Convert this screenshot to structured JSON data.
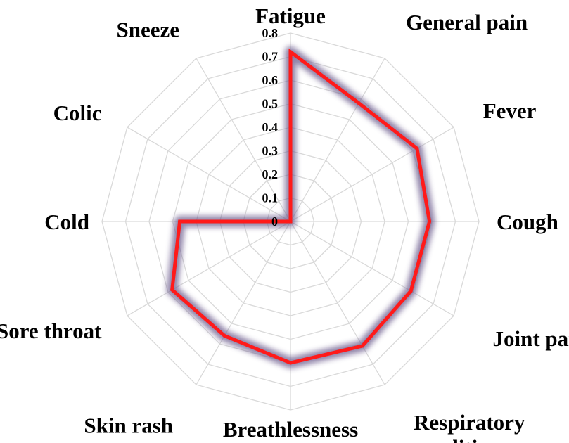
{
  "chart_data": {
    "type": "radar",
    "categories": [
      "Fatigue",
      "General pain",
      "Fever",
      "Cough",
      "Joint pain",
      "Respiratory condition",
      "Breathlessness",
      "Skin rash",
      "Sore throat",
      "Cold",
      "Colic",
      "Sneeze"
    ],
    "category_lines": [
      [
        "Fatigue"
      ],
      [
        "General pain"
      ],
      [
        "Fever"
      ],
      [
        "Cough"
      ],
      [
        "Joint pain"
      ],
      [
        "Respiratory",
        "condition"
      ],
      [
        "Breathlessness"
      ],
      [
        "Skin rash"
      ],
      [
        "Sore throat"
      ],
      [
        "Cold"
      ],
      [
        "Colic"
      ],
      [
        "Sneeze"
      ]
    ],
    "values": [
      0.72,
      0.58,
      0.62,
      0.59,
      0.59,
      0.61,
      0.6,
      0.56,
      0.58,
      0.47,
      0.0,
      0.0
    ],
    "range": [
      0,
      0.8
    ],
    "ticks": [
      "0",
      "0.1",
      "0.2",
      "0.3",
      "0.4",
      "0.5",
      "0.6",
      "0.7",
      "0.8"
    ],
    "grid": true,
    "legend": "none",
    "line_color": "#ff1a1a",
    "glow_color": "#6a5a8c",
    "grid_color": "#d9d9d9"
  }
}
